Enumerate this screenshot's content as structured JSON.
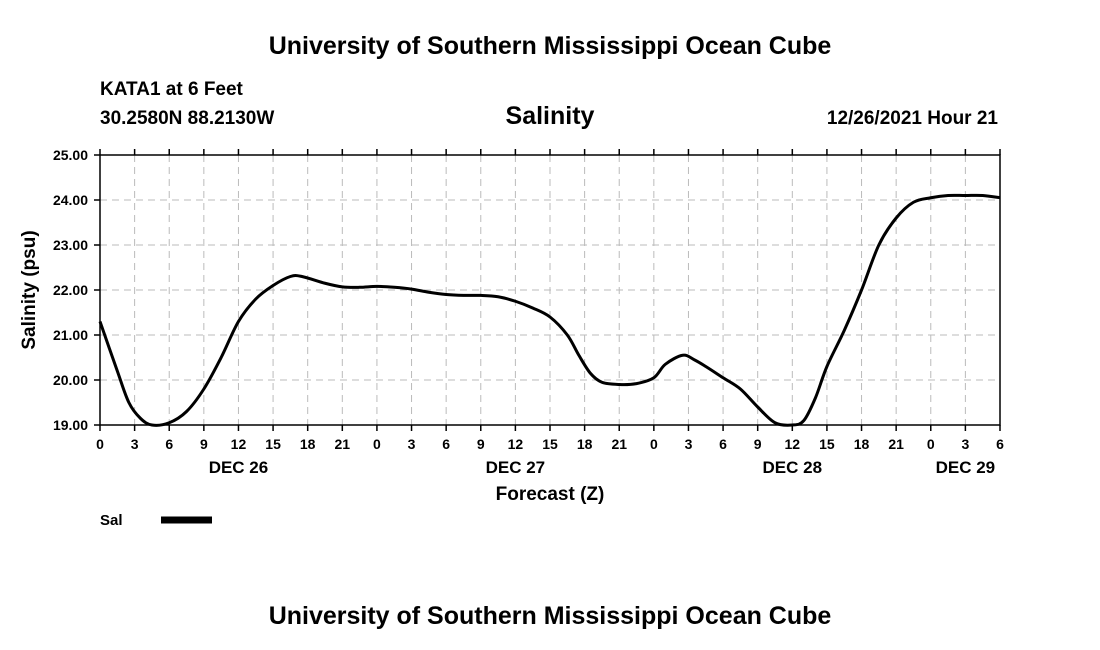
{
  "header": {
    "title": "University of Southern Mississippi Ocean Cube",
    "station": "KATA1 at 6 Feet",
    "coords": "30.2580N  88.2130W",
    "variable": "Salinity",
    "timestamp": "12/26/2021 Hour 21"
  },
  "footer": {
    "title": "University of Southern Mississippi Ocean Cube"
  },
  "chart_data": {
    "type": "line",
    "title": "Salinity",
    "xlabel": "Forecast (Z)",
    "ylabel": "Salinity (psu)",
    "xlim": [
      0,
      78
    ],
    "ylim": [
      19,
      25
    ],
    "grid": true,
    "x_tick_hours": [
      0,
      3,
      6,
      9,
      12,
      15,
      18,
      21,
      24,
      27,
      30,
      33,
      36,
      39,
      42,
      45,
      48,
      51,
      54,
      57,
      60,
      63,
      66,
      69,
      72,
      75,
      78
    ],
    "x_tick_labels": [
      "0",
      "3",
      "6",
      "9",
      "12",
      "15",
      "18",
      "21",
      "0",
      "3",
      "6",
      "9",
      "12",
      "15",
      "18",
      "21",
      "0",
      "3",
      "6",
      "9",
      "12",
      "15",
      "18",
      "21",
      "0",
      "3",
      "6"
    ],
    "y_ticks": [
      19,
      20,
      21,
      22,
      23,
      24,
      25
    ],
    "y_tick_labels": [
      "19.00",
      "20.00",
      "21.00",
      "22.00",
      "23.00",
      "24.00",
      "25.00"
    ],
    "date_labels": [
      {
        "hour": 12,
        "label": "DEC 26"
      },
      {
        "hour": 36,
        "label": "DEC 27"
      },
      {
        "hour": 60,
        "label": "DEC 28"
      },
      {
        "hour": 75,
        "label": "DEC 29"
      }
    ],
    "series": [
      {
        "name": "Sal",
        "color": "#000000",
        "x": [
          0,
          1.5,
          2.5,
          3.5,
          4.5,
          6,
          7.5,
          9,
          10.5,
          12,
          13.5,
          15,
          16.5,
          17.5,
          19.5,
          21,
          22.5,
          24,
          25.5,
          27,
          28.5,
          30,
          31.5,
          33,
          34.5,
          36,
          37.5,
          39,
          40.5,
          41.5,
          42.5,
          43.5,
          45,
          46.5,
          48,
          49,
          50.5,
          51.5,
          52.5,
          54,
          55.5,
          57,
          58.5,
          60,
          61,
          62,
          63,
          64.5,
          66,
          67.5,
          69,
          70.5,
          72,
          73.5,
          75,
          76.5,
          78
        ],
        "values": [
          21.3,
          20.2,
          19.5,
          19.15,
          19.0,
          19.05,
          19.3,
          19.8,
          20.5,
          21.3,
          21.8,
          22.1,
          22.3,
          22.3,
          22.15,
          22.07,
          22.06,
          22.08,
          22.06,
          22.02,
          21.95,
          21.9,
          21.88,
          21.88,
          21.85,
          21.75,
          21.6,
          21.4,
          21.0,
          20.55,
          20.15,
          19.95,
          19.9,
          19.92,
          20.05,
          20.35,
          20.55,
          20.45,
          20.3,
          20.05,
          19.8,
          19.4,
          19.05,
          19.0,
          19.1,
          19.6,
          20.3,
          21.1,
          22.0,
          23.0,
          23.6,
          23.95,
          24.05,
          24.1,
          24.1,
          24.1,
          24.05
        ]
      }
    ],
    "legend": {
      "placement": "bottom-left",
      "entries": [
        "Sal"
      ]
    }
  }
}
